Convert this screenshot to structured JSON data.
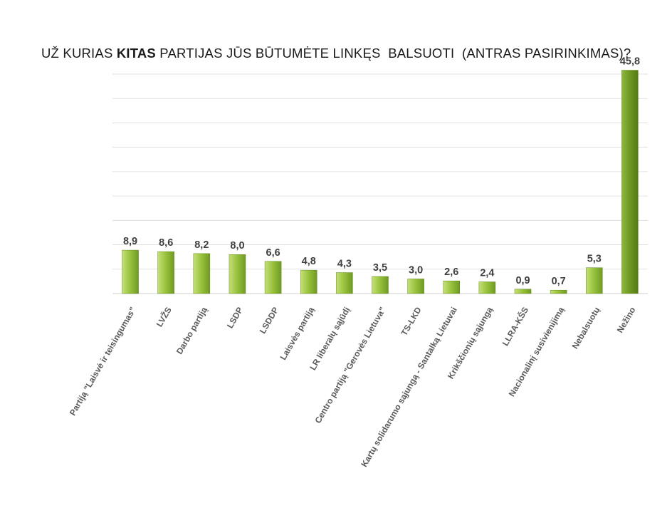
{
  "title": {
    "prefix": "UŽ KURIAS ",
    "bold": "KITAS",
    "suffix": " PARTIJAS JŪS BŪTUMĖTE LINKĘS  BALSUOTI  (ANTRAS PASIRINKIMAS)?"
  },
  "colors": {
    "bar_light": "#c6e07a",
    "bar_mid": "#9bc43f",
    "bar_dark": "#6f9a22",
    "gridline": "#d9d9d9"
  },
  "chart_data": {
    "type": "bar",
    "title": "UŽ KURIAS KITAS PARTIJAS JŪS BŪTUMĖTE LINKĘS  BALSUOTI  (ANTRAS PASIRINKIMAS)?",
    "xlabel": "",
    "ylabel": "",
    "ylim": [
      0,
      45
    ],
    "grid": true,
    "legend": "none",
    "categories": [
      "Partiją \"Laisvė ir teisingumas\"",
      "LVŽS",
      "Darbo partiją",
      "LSDP",
      "LSDDP",
      "Laisvės partiją",
      "LR liberalų sąjūdį",
      "Centro partiją \"Gerovės Lietuva\"",
      "TS-LKD",
      "Kartų solidarumo sąjungą - Santalką Lietuvai",
      "Krikščionių sąjungą",
      "LLRA-KŠS",
      "Nacionalinį susivienijimą",
      "Nebalsuotų",
      "Nežino"
    ],
    "values": [
      8.9,
      8.6,
      8.2,
      8.0,
      6.6,
      4.8,
      4.3,
      3.5,
      3.0,
      2.6,
      2.4,
      0.9,
      0.7,
      5.3,
      45.8
    ],
    "value_labels": [
      "8,9",
      "8,6",
      "8,2",
      "8,0",
      "6,6",
      "4,8",
      "4,3",
      "3,5",
      "3,0",
      "2,6",
      "2,4",
      "0,9",
      "0,7",
      "5,3",
      "45,8"
    ]
  }
}
